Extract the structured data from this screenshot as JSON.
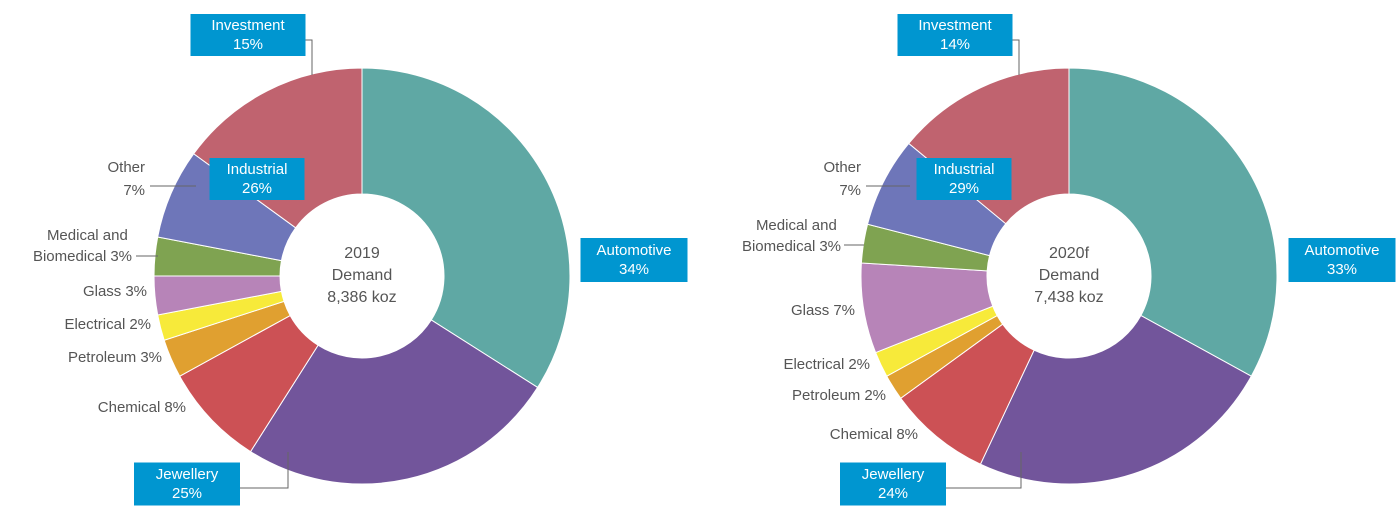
{
  "chart_data": [
    {
      "type": "donut",
      "center_label": [
        "2019",
        "Demand",
        "8,386 koz"
      ],
      "categories": [
        "Automotive",
        "Jewellery",
        "Chemical",
        "Petroleum",
        "Electrical",
        "Glass",
        "Medical and Biomedical",
        "Other",
        "Investment"
      ],
      "values": [
        34,
        25,
        8,
        3,
        2,
        3,
        3,
        7,
        15
      ],
      "value_labels": [
        "34%",
        "25%",
        "8%",
        "3%",
        "2%",
        "3%",
        "3%",
        "7%",
        "15%"
      ],
      "colors": [
        "#5fa8a4",
        "#72559b",
        "#cc5155",
        "#e0a030",
        "#f7ea3a",
        "#b784b8",
        "#7fa351",
        "#6e76b9",
        "#c0636f"
      ],
      "group": {
        "name": "Industrial",
        "value": 26,
        "value_label": "26%"
      }
    },
    {
      "type": "donut",
      "center_label": [
        "2020f",
        "Demand",
        "7,438 koz"
      ],
      "categories": [
        "Automotive",
        "Jewellery",
        "Chemical",
        "Petroleum",
        "Electrical",
        "Glass",
        "Medical and Biomedical",
        "Other",
        "Investment"
      ],
      "values": [
        33,
        24,
        8,
        2,
        2,
        7,
        3,
        7,
        14
      ],
      "value_labels": [
        "33%",
        "24%",
        "8%",
        "2%",
        "2%",
        "7%",
        "3%",
        "7%",
        "14%"
      ],
      "colors": [
        "#5fa8a4",
        "#72559b",
        "#cc5155",
        "#e0a030",
        "#f7ea3a",
        "#b784b8",
        "#7fa351",
        "#6e76b9",
        "#c0636f"
      ],
      "group": {
        "name": "Industrial",
        "value": 29,
        "value_label": "29%"
      }
    }
  ]
}
